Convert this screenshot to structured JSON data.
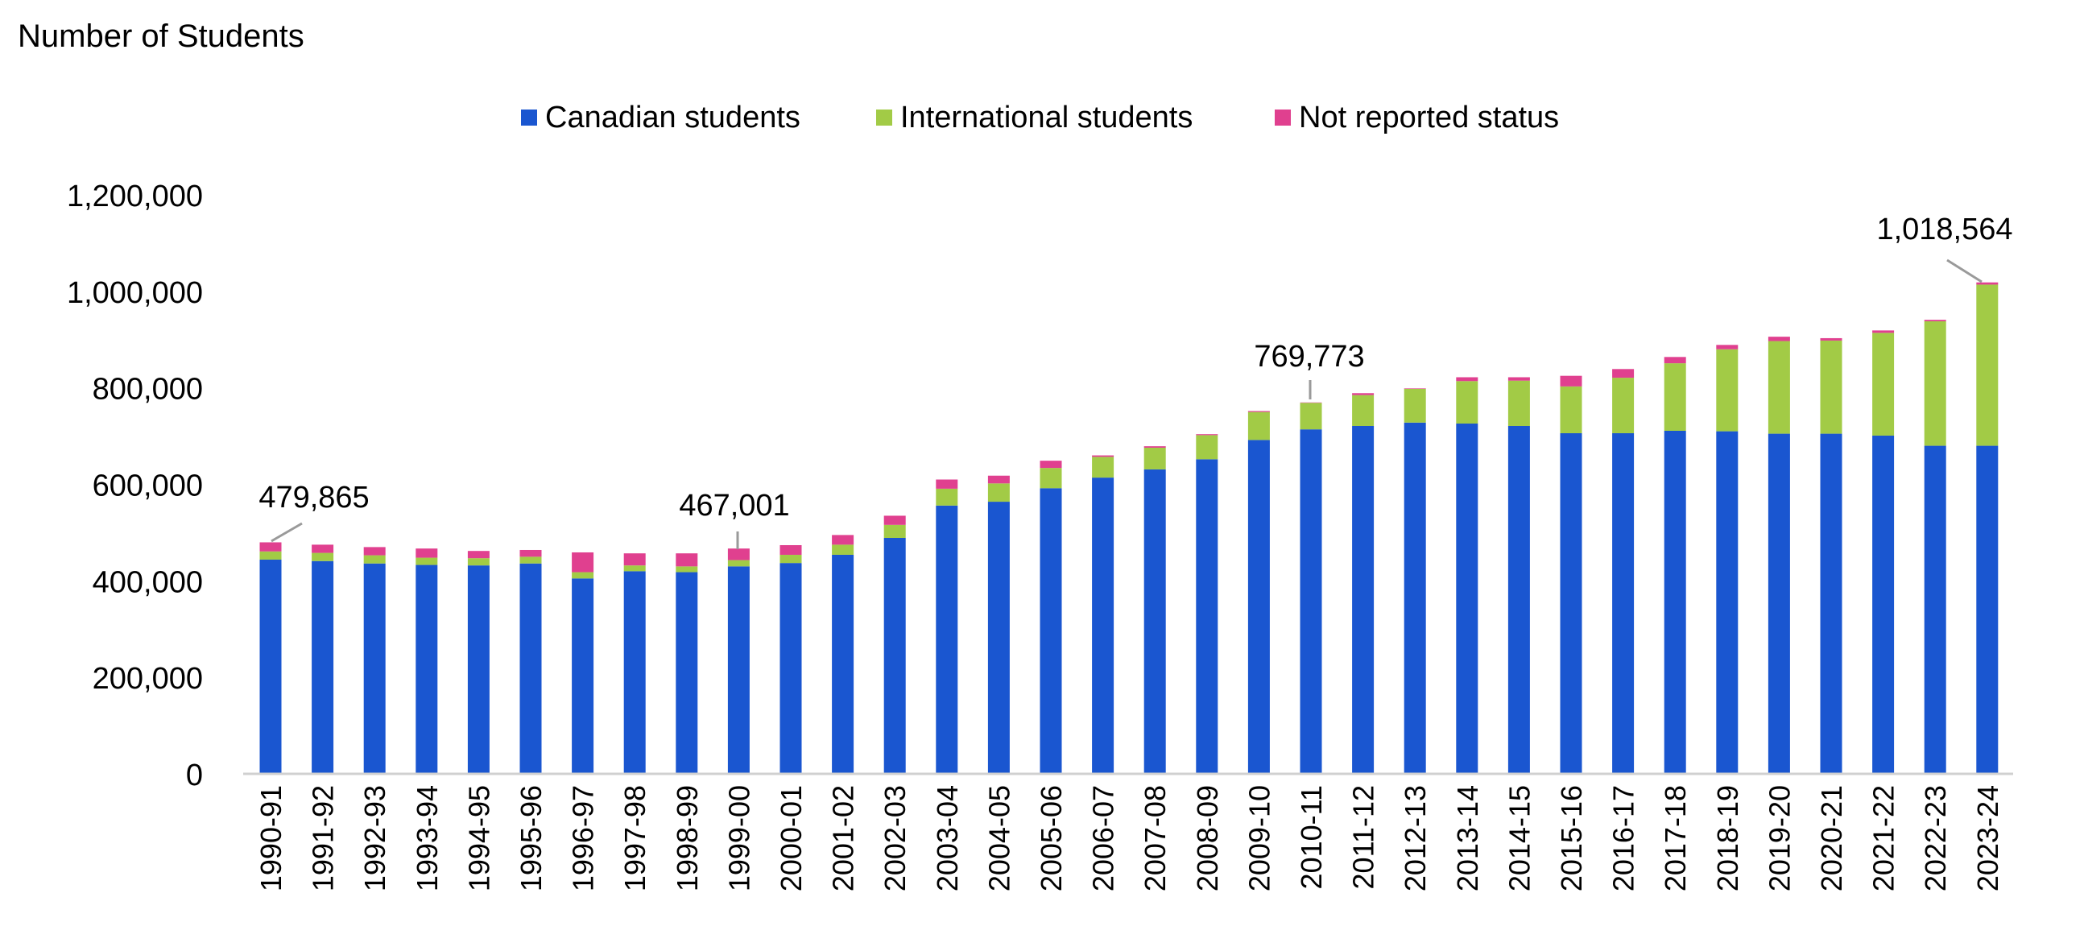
{
  "chart_data": {
    "type": "bar",
    "stacked": true,
    "title": "",
    "ylabel": "Number of Students",
    "xlabel": "",
    "ylim": [
      0,
      1200000
    ],
    "y_ticks": [
      0,
      200000,
      400000,
      600000,
      800000,
      1000000,
      1200000
    ],
    "y_tick_labels": [
      "0",
      "200,000",
      "400,000",
      "600,000",
      "800,000",
      "1,000,000",
      "1,200,000"
    ],
    "grid": false,
    "legend": {
      "position": "top-center"
    },
    "categories": [
      "1990-91",
      "1991-92",
      "1992-93",
      "1993-94",
      "1994-95",
      "1995-96",
      "1996-97",
      "1997-98",
      "1998-99",
      "1999-00",
      "2000-01",
      "2001-02",
      "2002-03",
      "2003-04",
      "2004-05",
      "2005-06",
      "2006-07",
      "2007-08",
      "2008-09",
      "2009-10",
      "2010-11",
      "2011-12",
      "2012-13",
      "2013-14",
      "2014-15",
      "2015-16",
      "2016-17",
      "2017-18",
      "2018-19",
      "2019-20",
      "2020-21",
      "2021-22",
      "2022-23",
      "2023-24"
    ],
    "series": [
      {
        "name": "Canadian students",
        "color": "#1a56d0",
        "values": [
          444000,
          441000,
          436000,
          433000,
          432000,
          436000,
          405000,
          420000,
          418000,
          430000,
          437000,
          454000,
          489000,
          556000,
          564000,
          592000,
          614000,
          631000,
          652000,
          692000,
          714000,
          721000,
          728000,
          726000,
          721000,
          706000,
          706000,
          711000,
          710000,
          705000,
          705000,
          701000,
          680000,
          680000
        ]
      },
      {
        "name": "International students",
        "color": "#a2cb46",
        "values": [
          17000,
          17000,
          17000,
          15000,
          15000,
          14000,
          13000,
          12000,
          12000,
          13000,
          17000,
          21000,
          27000,
          35000,
          38000,
          42000,
          43000,
          45000,
          50000,
          58000,
          55000,
          64000,
          70000,
          88000,
          94000,
          97000,
          115000,
          140000,
          170000,
          192000,
          193000,
          213000,
          258000,
          334000
        ]
      },
      {
        "name": "Not reported status",
        "color": "#e0408f",
        "values": [
          18865,
          17000,
          17000,
          19000,
          15000,
          14000,
          41000,
          25000,
          27000,
          24001,
          20000,
          20000,
          19000,
          19000,
          16000,
          15000,
          3000,
          3000,
          2000,
          2000,
          773,
          4000,
          1000,
          8000,
          7000,
          22000,
          18000,
          13000,
          9000,
          9000,
          5000,
          5000,
          3000,
          4564
        ]
      }
    ],
    "annotations": [
      {
        "category": "1990-91",
        "text": "479,865"
      },
      {
        "category": "1999-00",
        "text": "467,001"
      },
      {
        "category": "2010-11",
        "text": "769,773"
      },
      {
        "category": "2023-24",
        "text": "1,018,564"
      }
    ]
  }
}
